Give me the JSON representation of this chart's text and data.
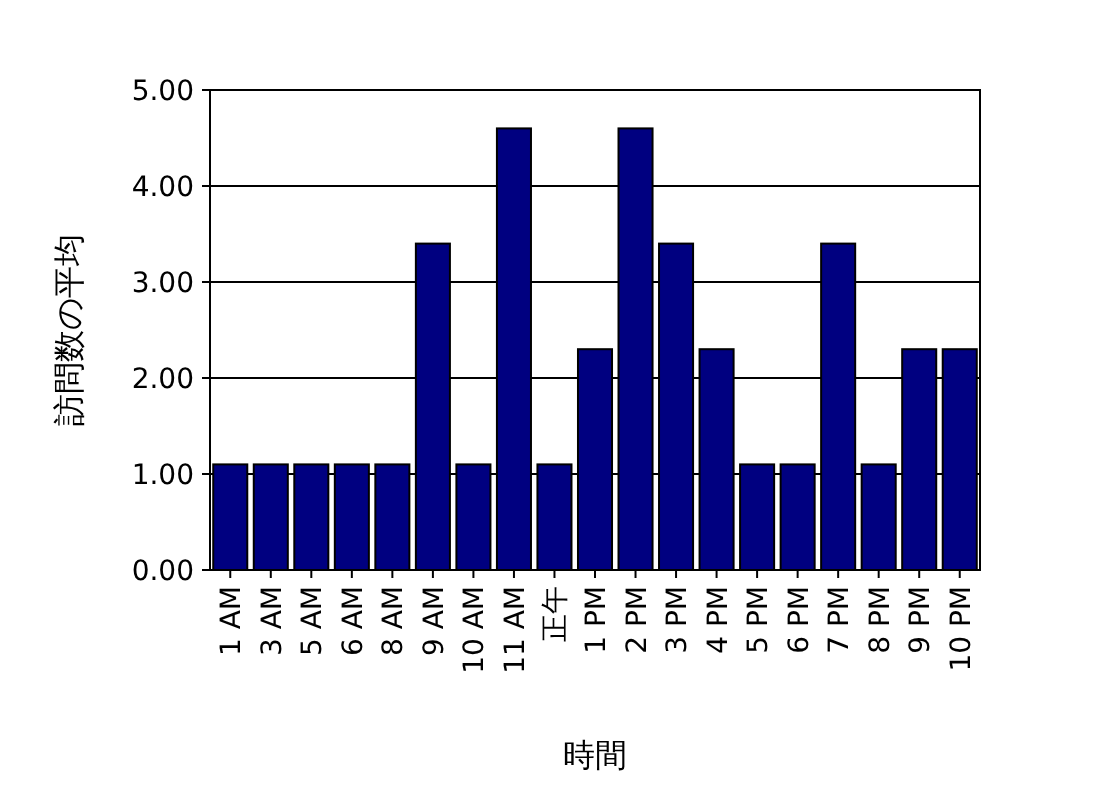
{
  "chart_data": {
    "type": "bar",
    "xlabel": "時間",
    "ylabel": "訪問数の平均",
    "categories": [
      "1 AM",
      "3 AM",
      "5 AM",
      "6 AM",
      "8 AM",
      "9 AM",
      "10 AM",
      "11 AM",
      "正午",
      "1 PM",
      "2 PM",
      "3 PM",
      "4 PM",
      "5 PM",
      "6 PM",
      "7 PM",
      "8 PM",
      "9 PM",
      "10 PM"
    ],
    "values": [
      1.1,
      1.1,
      1.1,
      1.1,
      1.1,
      3.4,
      1.1,
      4.6,
      1.1,
      2.3,
      4.6,
      3.4,
      2.3,
      1.1,
      1.1,
      3.4,
      1.1,
      2.3,
      2.3
    ],
    "color": "#000080",
    "ylim": [
      0,
      5
    ],
    "yticks": [
      {
        "value": 0,
        "label": "0.00"
      },
      {
        "value": 1,
        "label": "1.00"
      },
      {
        "value": 2,
        "label": "2.00"
      },
      {
        "value": 3,
        "label": "3.00"
      },
      {
        "value": 4,
        "label": "4.00"
      },
      {
        "value": 5,
        "label": "5.00"
      }
    ],
    "grid": "y"
  }
}
